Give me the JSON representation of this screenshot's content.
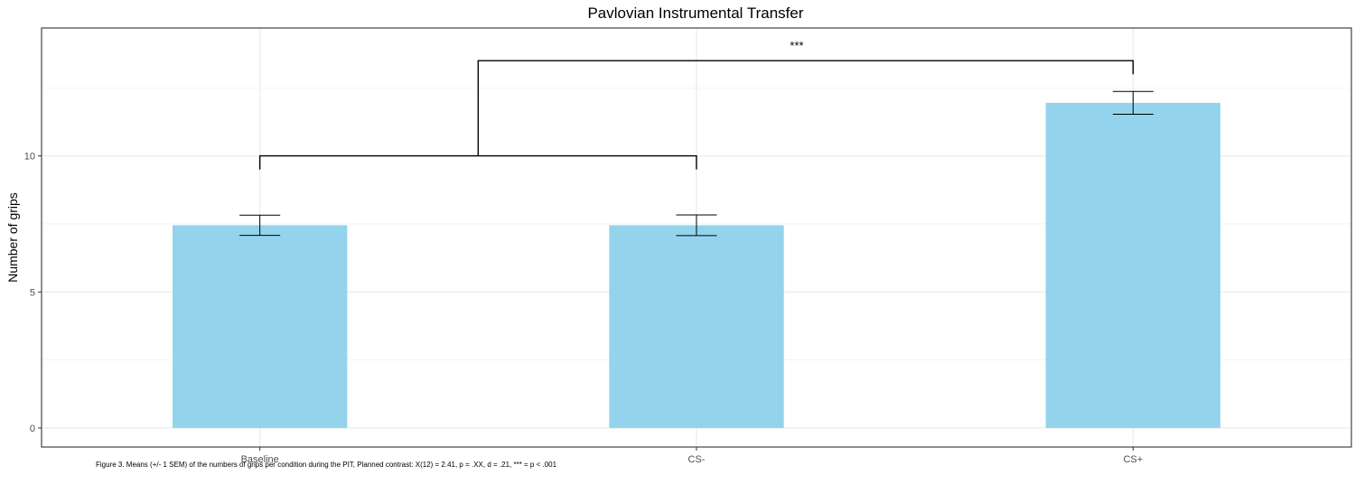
{
  "chart_data": {
    "type": "bar",
    "title": "Pavlovian Instrumental Transfer",
    "xlabel": "",
    "ylabel": "Number of grips",
    "categories": [
      "Baseline",
      "CS-",
      "CS+"
    ],
    "values": [
      7.45,
      7.45,
      11.95
    ],
    "errors": [
      0.37,
      0.38,
      0.42
    ],
    "ylim": [
      -0.7,
      14.7
    ],
    "yticks": [
      0,
      5,
      10
    ],
    "grid": true,
    "bar_color": "#94d3ec",
    "significance": {
      "label": "***",
      "lower_bracket": {
        "from": "Baseline",
        "to": "CS-",
        "y": 10
      },
      "upper_bracket": {
        "y": 13.5
      },
      "lower_bracket_drop": 9.5,
      "upper_bracket_drop": 13.0
    },
    "caption": "Figure 3. Means (+/- 1 SEM) of the numbers of grips per condition during the PIT, Planned contrast: X(12) = 2.41, p = .XX, d = .21, *** = p < .001"
  }
}
